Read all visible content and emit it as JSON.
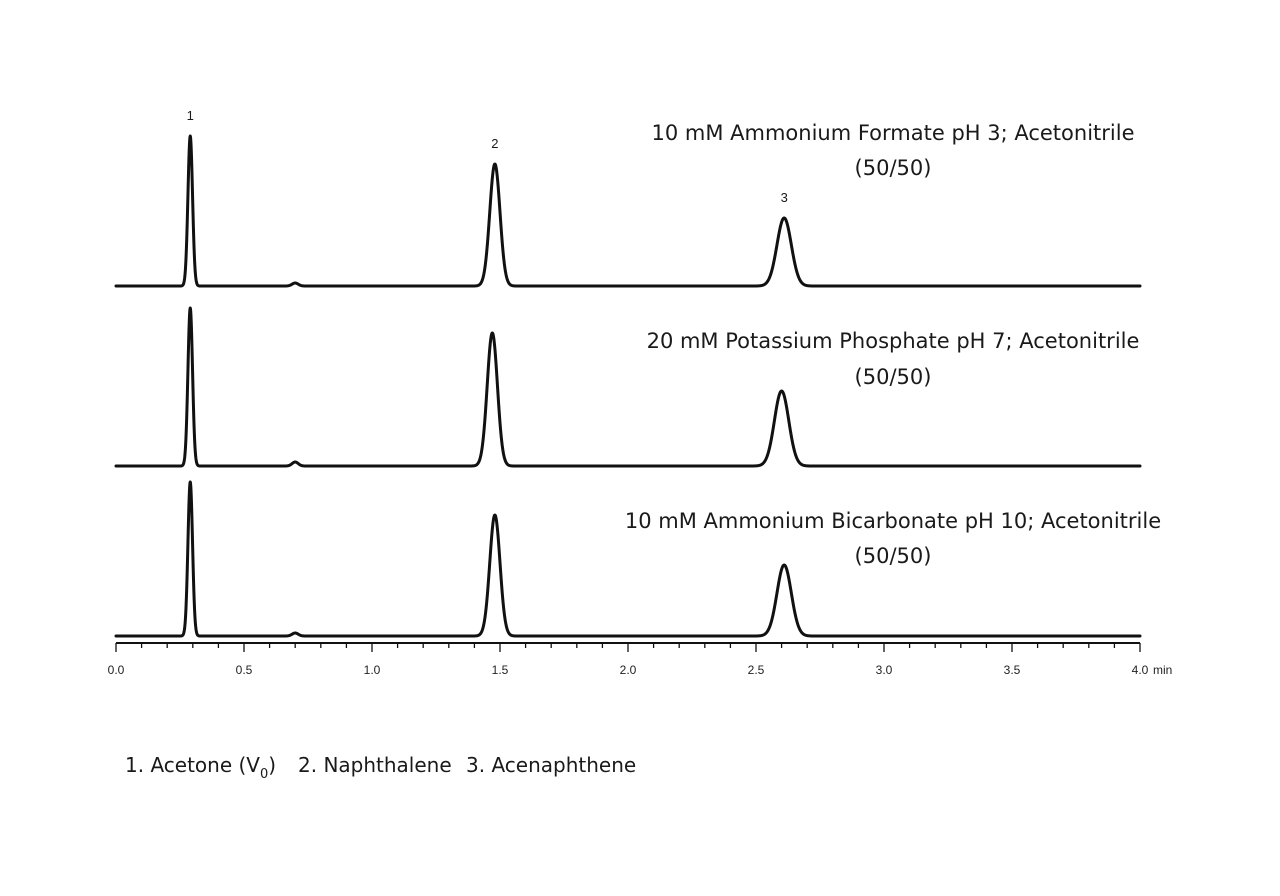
{
  "chart_data": {
    "type": "line",
    "xlabel": "min",
    "xlim": [
      0.0,
      4.0
    ],
    "x_ticks": [
      "0.0",
      "0.5",
      "1.0",
      "1.5",
      "2.0",
      "2.5",
      "3.0",
      "3.5",
      "4.0"
    ],
    "peak_labels": [
      "1",
      "2",
      "3"
    ],
    "series": [
      {
        "name_line1": "10 mM Ammonium Formate pH 3; Acetonitrile",
        "name_line2": "(50/50)",
        "peaks": [
          {
            "label": "1",
            "retention_time": 0.29,
            "height": 150,
            "width": 0.009
          },
          {
            "label": "",
            "retention_time": 0.7,
            "height": 3,
            "width": 0.012
          },
          {
            "label": "2",
            "retention_time": 1.48,
            "height": 122,
            "width": 0.02
          },
          {
            "label": "3",
            "retention_time": 2.61,
            "height": 68,
            "width": 0.028
          }
        ]
      },
      {
        "name_line1": "20 mM Potassium Phosphate pH 7; Acetonitrile",
        "name_line2": "(50/50)",
        "peaks": [
          {
            "label": "",
            "retention_time": 0.29,
            "height": 158,
            "width": 0.009
          },
          {
            "label": "",
            "retention_time": 0.7,
            "height": 4,
            "width": 0.012
          },
          {
            "label": "",
            "retention_time": 1.47,
            "height": 133,
            "width": 0.02
          },
          {
            "label": "",
            "retention_time": 2.6,
            "height": 75,
            "width": 0.028
          }
        ]
      },
      {
        "name_line1": "10 mM Ammonium Bicarbonate pH 10; Acetonitrile",
        "name_line2": "(50/50)",
        "peaks": [
          {
            "label": "",
            "retention_time": 0.29,
            "height": 154,
            "width": 0.009
          },
          {
            "label": "",
            "retention_time": 0.7,
            "height": 3,
            "width": 0.012
          },
          {
            "label": "",
            "retention_time": 1.48,
            "height": 121,
            "width": 0.02
          },
          {
            "label": "",
            "retention_time": 2.61,
            "height": 71,
            "width": 0.028
          }
        ]
      }
    ],
    "legend": {
      "item1_prefix": "1. Acetone (V",
      "item1_sub": "0",
      "item1_suffix": ")",
      "item2": "2. Naphthalene",
      "item3": "3. Acenaphthene"
    }
  }
}
